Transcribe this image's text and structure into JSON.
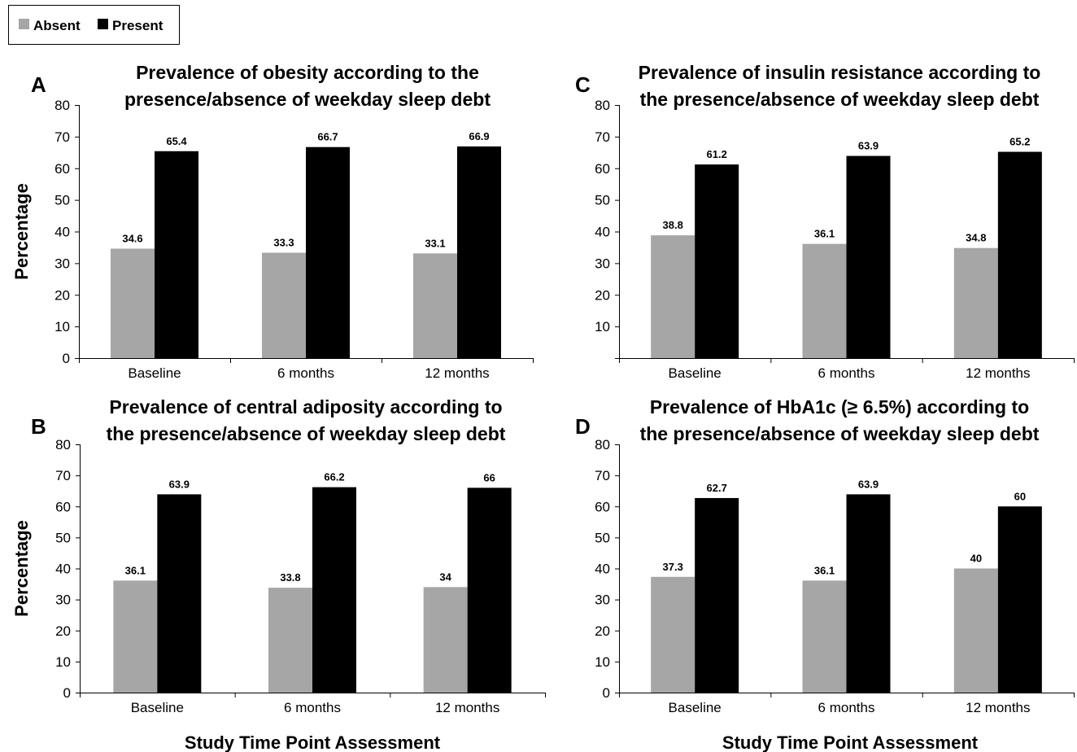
{
  "legend": {
    "items": [
      {
        "label": "Absent",
        "color": "#a6a6a6"
      },
      {
        "label": "Present",
        "color": "#000000"
      }
    ]
  },
  "chart_data": [
    {
      "panel": "A",
      "type": "bar",
      "title": [
        "Prevalence of obesity according to the",
        "presence/absence of weekday sleep debt"
      ],
      "ylabel": "Percentage",
      "xlabel": "",
      "ylim": [
        0,
        80
      ],
      "yticks": [
        0,
        10,
        20,
        30,
        40,
        50,
        60,
        70,
        80
      ],
      "categories": [
        "Baseline",
        "6 months",
        "12 months"
      ],
      "series": [
        {
          "name": "Absent",
          "values": [
            34.6,
            33.3,
            33.1
          ]
        },
        {
          "name": "Present",
          "values": [
            65.4,
            66.7,
            66.9
          ]
        }
      ],
      "value_labels": [
        [
          "34.6",
          "33.3",
          "33.1"
        ],
        [
          "65.4",
          "66.7",
          "66.9"
        ]
      ]
    },
    {
      "panel": "B",
      "type": "bar",
      "title": [
        "Prevalence of central adiposity according to",
        "the presence/absence of weekday sleep debt"
      ],
      "ylabel": "Percentage",
      "xlabel": "Study Time Point Assessment",
      "ylim": [
        0,
        80
      ],
      "yticks": [
        0,
        10,
        20,
        30,
        40,
        50,
        60,
        70,
        80
      ],
      "categories": [
        "Baseline",
        "6 months",
        "12 months"
      ],
      "series": [
        {
          "name": "Absent",
          "values": [
            36.1,
            33.8,
            34
          ]
        },
        {
          "name": "Present",
          "values": [
            63.9,
            66.2,
            66
          ]
        }
      ],
      "value_labels": [
        [
          "36.1",
          "33.8",
          "34"
        ],
        [
          "63.9",
          "66.2",
          "66"
        ]
      ]
    },
    {
      "panel": "C",
      "type": "bar",
      "title": [
        "Prevalence of insulin resistance according to",
        "the presence/absence of weekday sleep debt"
      ],
      "ylabel": "",
      "xlabel": "",
      "ylim": [
        0,
        80
      ],
      "yticks": [
        10,
        20,
        30,
        40,
        50,
        60,
        70,
        80
      ],
      "categories": [
        "Baseline",
        "6 months",
        "12 months"
      ],
      "series": [
        {
          "name": "Absent",
          "values": [
            38.8,
            36.1,
            34.8
          ]
        },
        {
          "name": "Present",
          "values": [
            61.2,
            63.9,
            65.2
          ]
        }
      ],
      "value_labels": [
        [
          "38.8",
          "36.1",
          "34.8"
        ],
        [
          "61.2",
          "63.9",
          "65.2"
        ]
      ]
    },
    {
      "panel": "D",
      "type": "bar",
      "title": [
        "Prevalence of HbA1c (≥ 6.5%) according to",
        "the presence/absence of weekday sleep debt"
      ],
      "ylabel": "",
      "xlabel": "Study Time Point Assessment",
      "ylim": [
        0,
        80
      ],
      "yticks": [
        0,
        10,
        20,
        30,
        40,
        50,
        60,
        70,
        80
      ],
      "categories": [
        "Baseline",
        "6 months",
        "12 months"
      ],
      "series": [
        {
          "name": "Absent",
          "values": [
            37.3,
            36.1,
            40
          ]
        },
        {
          "name": "Present",
          "values": [
            62.7,
            63.9,
            60
          ]
        }
      ],
      "value_labels": [
        [
          "37.3",
          "36.1",
          "40"
        ],
        [
          "62.7",
          "63.9",
          "60"
        ]
      ]
    }
  ]
}
